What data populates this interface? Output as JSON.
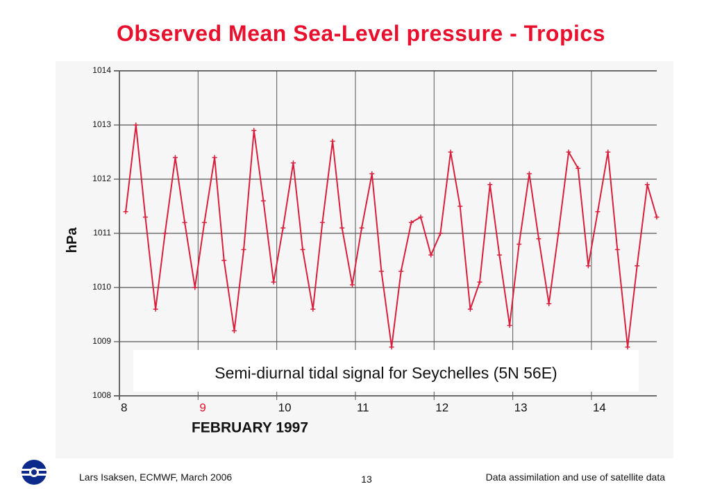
{
  "slide": {
    "title": "Observed Mean Sea-Level pressure - Tropics",
    "footer_left": "Lars Isaksen, ECMWF, March 2006",
    "page_number": "13",
    "footer_right": "Data assimilation and use of satellite data",
    "logo_icon": "ecmwf-logo-icon"
  },
  "colors": {
    "title": "#e8102c",
    "series": "#d81e3a",
    "grid": "#555555",
    "highlight_tick": "#e8102c"
  },
  "chart_data": {
    "type": "line",
    "title": "",
    "xlabel": "FEBRUARY 1997",
    "ylabel": "hPa",
    "xlim": [
      8,
      14.83
    ],
    "ylim": [
      1008,
      1014
    ],
    "x_ticks": [
      8,
      9,
      10,
      11,
      12,
      13,
      14
    ],
    "x_tick_labels": [
      "8",
      "9",
      "10",
      "11",
      "12",
      "13",
      "14"
    ],
    "x_tick_highlight": [
      "9"
    ],
    "y_ticks": [
      1008,
      1009,
      1010,
      1011,
      1012,
      1013,
      1014
    ],
    "y_tick_labels": [
      "1008",
      "1009",
      "1010",
      "1011",
      "1012",
      "1013",
      "1014"
    ],
    "grid": true,
    "annotation": "Semi-diurnal tidal signal for Seychelles (5N 56E)",
    "series": [
      {
        "name": "",
        "x": [
          8.08,
          8.21,
          8.33,
          8.46,
          8.58,
          8.71,
          8.83,
          8.96,
          9.08,
          9.21,
          9.33,
          9.46,
          9.58,
          9.71,
          9.83,
          9.96,
          10.08,
          10.21,
          10.33,
          10.46,
          10.58,
          10.71,
          10.83,
          10.96,
          11.08,
          11.21,
          11.33,
          11.46,
          11.58,
          11.71,
          11.83,
          11.96,
          12.08,
          12.21,
          12.33,
          12.46,
          12.58,
          12.71,
          12.83,
          12.96,
          13.08,
          13.21,
          13.33,
          13.46,
          13.58,
          13.71,
          13.83,
          13.96,
          14.08,
          14.21,
          14.33,
          14.46,
          14.58,
          14.71,
          14.83
        ],
        "values": [
          1011.4,
          1013.0,
          1011.3,
          1009.6,
          1011.0,
          1012.4,
          1011.2,
          1010.0,
          1011.2,
          1012.4,
          1010.5,
          1009.2,
          1010.7,
          1012.9,
          1011.6,
          1010.1,
          1011.1,
          1012.3,
          1010.7,
          1009.6,
          1011.2,
          1012.7,
          1011.1,
          1010.05,
          1011.1,
          1012.1,
          1010.3,
          1008.9,
          1010.3,
          1011.2,
          1011.3,
          1010.6,
          1011.0,
          1012.5,
          1011.5,
          1009.6,
          1010.1,
          1011.9,
          1010.6,
          1009.3,
          1010.8,
          1012.1,
          1010.9,
          1009.7,
          1011.0,
          1012.5,
          1012.2,
          1010.4,
          1011.4,
          1012.5,
          1010.7,
          1008.9,
          1010.4,
          1011.9,
          1011.3
        ]
      }
    ]
  }
}
